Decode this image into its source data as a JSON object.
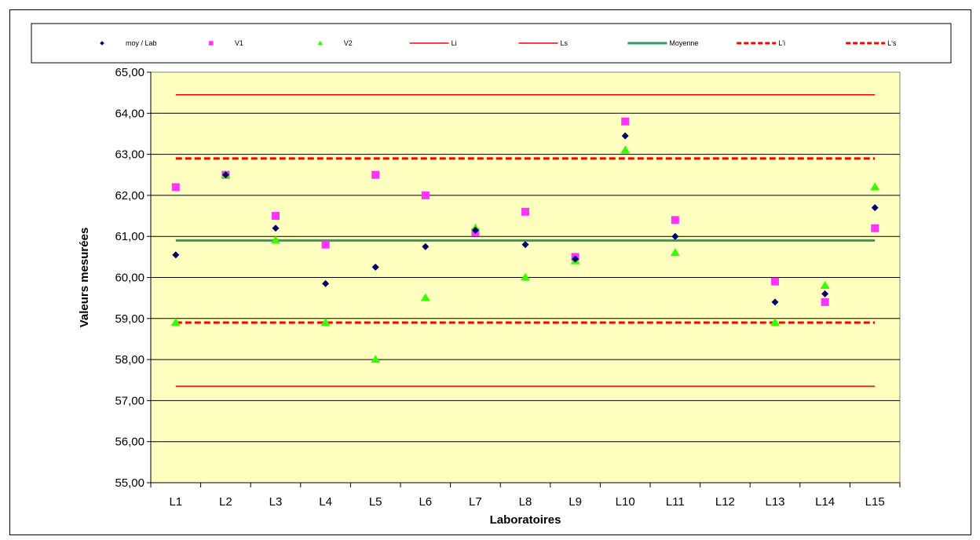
{
  "chart_data": {
    "type": "scatter",
    "xlabel": "Laboratoires",
    "ylabel": "Valeurs mesurées",
    "ylim": [
      55,
      65
    ],
    "ytick_step": 1,
    "ytick_labels": [
      "55,00",
      "56,00",
      "57,00",
      "58,00",
      "59,00",
      "60,00",
      "61,00",
      "62,00",
      "63,00",
      "64,00",
      "65,00"
    ],
    "categories": [
      "L1",
      "L2",
      "L3",
      "L4",
      "L5",
      "L6",
      "L7",
      "L8",
      "L9",
      "L10",
      "L11",
      "L12",
      "L13",
      "L14",
      "L15"
    ],
    "grid": "horizontal",
    "legend_position": "top",
    "plot_background": "#FFFFC0",
    "series": [
      {
        "name": "moy / Lab",
        "marker": "diamond",
        "color": "#000066",
        "values": [
          60.55,
          62.5,
          61.2,
          59.85,
          60.25,
          60.75,
          61.15,
          60.8,
          60.45,
          63.45,
          61.0,
          null,
          59.4,
          59.6,
          61.7
        ]
      },
      {
        "name": "V1",
        "marker": "square",
        "color": "#FF33FF",
        "values": [
          62.2,
          62.5,
          61.5,
          60.8,
          62.5,
          62.0,
          61.1,
          61.6,
          60.5,
          63.8,
          61.4,
          null,
          59.9,
          59.4,
          61.2
        ]
      },
      {
        "name": "V2",
        "marker": "triangle",
        "color": "#33FF00",
        "values": [
          58.9,
          62.5,
          60.9,
          58.9,
          58.0,
          59.5,
          61.2,
          60.0,
          60.4,
          63.1,
          60.6,
          null,
          58.9,
          59.8,
          62.2
        ]
      }
    ],
    "reference_lines": [
      {
        "name": "Li",
        "value": 57.35,
        "color": "#FF0000",
        "style": "solid"
      },
      {
        "name": "Ls",
        "value": 64.45,
        "color": "#FF0000",
        "style": "solid"
      },
      {
        "name": "Moyenne",
        "value": 60.9,
        "color": "#339966",
        "style": "solid-thick"
      },
      {
        "name": "L'i",
        "value": 58.9,
        "color": "#FF0000",
        "style": "dashed"
      },
      {
        "name": "L's",
        "value": 62.9,
        "color": "#FF0000",
        "style": "dashed"
      }
    ]
  }
}
